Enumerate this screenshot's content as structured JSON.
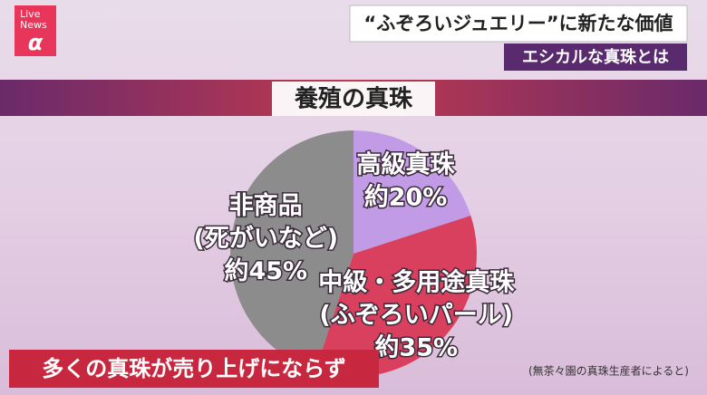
{
  "brand": {
    "line1": "Live",
    "line2": "News",
    "mark": "α"
  },
  "headline": "“ふぞろいジュエリー”に新たな価値",
  "subheadline": "エシカルな真珠とは",
  "caption": "多くの真珠が売り上げにならず",
  "source": "(無茶々園の真珠生産者によると)",
  "chart_data": {
    "type": "pie",
    "title": "養殖の真珠",
    "categories": [
      "高級真珠",
      "中級・多用途真珠",
      "非商品"
    ],
    "sublabels": [
      null,
      "(ふぞろいパール)",
      "(死がいなど)"
    ],
    "values": [
      20,
      35,
      45
    ],
    "value_labels": [
      "約20%",
      "約35%",
      "約45%"
    ],
    "colors": [
      "#c29be6",
      "#d8405e",
      "#8c8c8c"
    ]
  }
}
